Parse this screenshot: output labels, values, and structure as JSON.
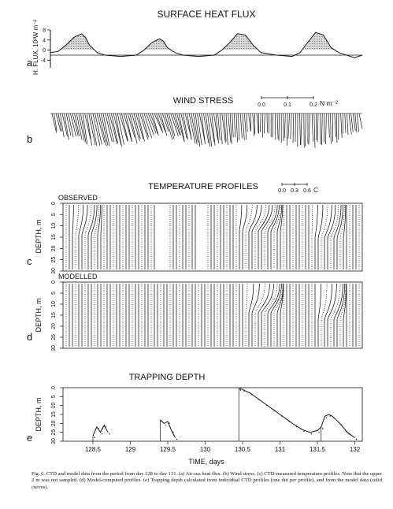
{
  "panels": {
    "a": {
      "letter": "a",
      "title": "SURFACE HEAT FLUX",
      "ylabel": "H. FLUX, 10²W m⁻²",
      "yticks": [
        "8",
        "4",
        "0",
        "-4"
      ]
    },
    "b": {
      "letter": "b",
      "title": "WIND STRESS",
      "scale_ticks": [
        "0.0",
        "0.1",
        "0.2"
      ],
      "scale_unit": "N m⁻²"
    },
    "temp_title": "TEMPERATURE PROFILES",
    "temp_scale_ticks": [
      "0.0",
      "0.3",
      "0.6"
    ],
    "temp_scale_unit": "C",
    "c": {
      "letter": "c",
      "tag": "OBSERVED",
      "ylabel": "DEPTH, m",
      "yticks": [
        "0",
        "5",
        "10",
        "15",
        "20",
        "25",
        "30"
      ]
    },
    "d": {
      "letter": "d",
      "tag": "MODELLED",
      "ylabel": "DEPTH, m",
      "yticks": [
        "0",
        "5",
        "10",
        "15",
        "20",
        "25",
        "30"
      ]
    },
    "e": {
      "letter": "e",
      "title": "TRAPPING DEPTH",
      "ylabel": "DEPTH, m",
      "yticks": [
        "0",
        "5",
        "10",
        "15",
        "20",
        "25",
        "30"
      ],
      "xticks": [
        "128.5",
        "129",
        "129.5",
        "130",
        "130.5",
        "131",
        "131.5",
        "132"
      ],
      "xlabel": "TIME, days"
    }
  },
  "caption": {
    "label": "Fig. 6.",
    "text": "CTD and model data from the period from day 128 to day 131. (a) Air-sea heat flux. (b) Wind stress. (c) CTD-measured temperature profiles. Note that the upper 2 m was not sampled. (d) Model-computed profiles. (e) Trapping depth calculated from individual CTD profiles (one dot per profile), and from the model data (solid curves)."
  },
  "chart_data": [
    {
      "type": "area",
      "title": "SURFACE HEAT FLUX",
      "ylabel": "H. FLUX, 10²W m⁻²",
      "ylim": [
        -7,
        8
      ],
      "xlim": [
        128.1,
        132.1
      ],
      "x": [
        128.1,
        128.2,
        128.3,
        128.4,
        128.5,
        128.55,
        128.6,
        128.7,
        128.8,
        129.0,
        129.2,
        129.3,
        129.4,
        129.5,
        129.55,
        129.6,
        129.7,
        129.8,
        130.0,
        130.2,
        130.3,
        130.4,
        130.5,
        130.6,
        130.7,
        130.8,
        131.0,
        131.2,
        131.3,
        131.4,
        131.5,
        131.6,
        131.7,
        131.8,
        132.0,
        132.1
      ],
      "values": [
        -1,
        -0.5,
        2,
        5,
        6.5,
        5,
        2,
        -1,
        -2,
        -2.5,
        -2,
        0,
        3,
        4.5,
        3.5,
        1,
        -1,
        -2,
        -2.5,
        -2,
        0,
        3,
        6.5,
        6,
        2,
        -1,
        -2,
        -2.5,
        -1,
        3,
        7,
        6,
        1,
        -1,
        -3,
        -2
      ]
    },
    {
      "type": "line",
      "title": "TRAPPING DEPTH",
      "ylabel": "DEPTH, m",
      "xlabel": "TIME, days",
      "ylim": [
        30,
        0
      ],
      "xlim": [
        128.1,
        132.1
      ],
      "series": [
        {
          "x": [
            128.5,
            128.55,
            128.6,
            128.65,
            128.7
          ],
          "values": [
            27,
            22,
            25,
            21,
            25
          ]
        },
        {
          "x": [
            129.4,
            129.45,
            129.5,
            129.55,
            129.6
          ],
          "values": [
            18,
            20,
            19,
            24,
            28
          ]
        },
        {
          "x": [
            130.45,
            130.5,
            130.6,
            130.7,
            130.8,
            130.9,
            131.0,
            131.1,
            131.2,
            131.3,
            131.4,
            131.5,
            131.55
          ],
          "values": [
            0.5,
            1,
            3,
            6,
            9,
            12,
            15,
            18,
            21,
            23.5,
            25,
            24,
            22
          ]
        },
        {
          "x": [
            131.55,
            131.6,
            131.65,
            131.7,
            131.8,
            131.9,
            132.0
          ],
          "values": [
            22,
            16,
            15,
            16,
            20,
            25,
            28
          ]
        }
      ]
    }
  ]
}
